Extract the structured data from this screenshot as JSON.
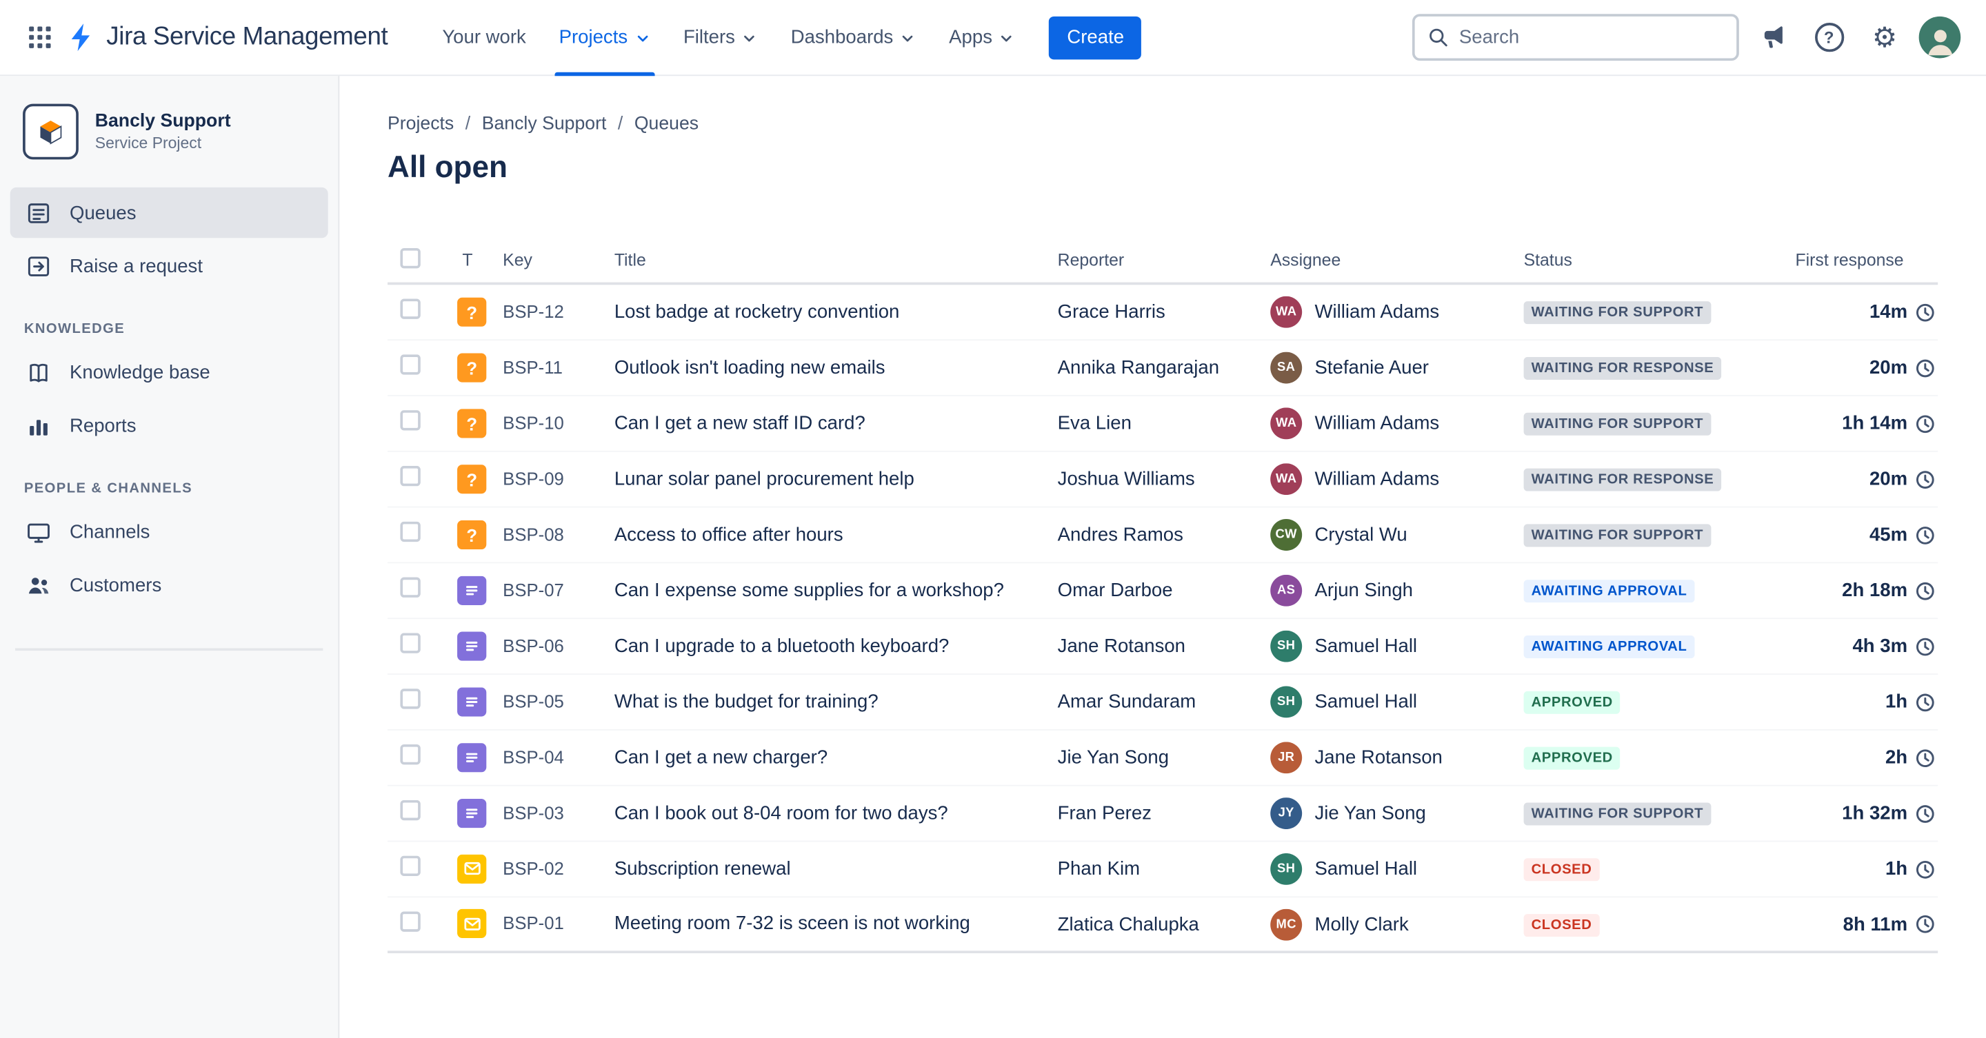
{
  "navbar": {
    "app_name": "Jira Service Management",
    "nav_items": [
      {
        "label": "Your work",
        "chevron": false,
        "active": false
      },
      {
        "label": "Projects",
        "chevron": true,
        "active": true
      },
      {
        "label": "Filters",
        "chevron": true,
        "active": false
      },
      {
        "label": "Dashboards",
        "chevron": true,
        "active": false
      },
      {
        "label": "Apps",
        "chevron": true,
        "active": false
      }
    ],
    "create_button": "Create",
    "search": {
      "placeholder": "Search"
    }
  },
  "sidebar": {
    "project": {
      "name": "Bancly Support",
      "type": "Service Project"
    },
    "groups": [
      {
        "heading": "",
        "items": [
          {
            "label": "Queues",
            "icon": "queues-icon",
            "selected": true
          },
          {
            "label": "Raise a request",
            "icon": "raise-request-icon",
            "selected": false
          }
        ]
      },
      {
        "heading": "KNOWLEDGE",
        "items": [
          {
            "label": "Knowledge base",
            "icon": "knowledge-base-icon",
            "selected": false
          },
          {
            "label": "Reports",
            "icon": "reports-icon",
            "selected": false
          }
        ]
      },
      {
        "heading": "PEOPLE & CHANNELS",
        "items": [
          {
            "label": "Channels",
            "icon": "channels-icon",
            "selected": false
          },
          {
            "label": "Customers",
            "icon": "customers-icon",
            "selected": false
          }
        ]
      }
    ]
  },
  "main": {
    "breadcrumb": [
      "Projects",
      "Bancly Support",
      "Queues"
    ],
    "title": "All open",
    "table": {
      "columns": {
        "type": "T",
        "key": "Key",
        "title": "Title",
        "reporter": "Reporter",
        "assignee": "Assignee",
        "status": "Status",
        "first_response": "First response"
      },
      "rows": [
        {
          "type": "question",
          "key": "BSP-12",
          "title": "Lost badge at rocketry convention",
          "reporter": "Grace Harris",
          "assignee": "William Adams",
          "status": "WAITING FOR SUPPORT",
          "status_kind": "gray",
          "first_response": "14m"
        },
        {
          "type": "question",
          "key": "BSP-11",
          "title": "Outlook isn't loading new emails",
          "reporter": "Annika Rangarajan",
          "assignee": "Stefanie Auer",
          "status": "WAITING FOR RESPONSE",
          "status_kind": "gray",
          "first_response": "20m"
        },
        {
          "type": "question",
          "key": "BSP-10",
          "title": "Can I get a new staff ID card?",
          "reporter": "Eva Lien",
          "assignee": "William Adams",
          "status": "WAITING FOR SUPPORT",
          "status_kind": "gray",
          "first_response": "1h 14m"
        },
        {
          "type": "question",
          "key": "BSP-09",
          "title": "Lunar solar panel procurement help",
          "reporter": "Joshua Williams",
          "assignee": "William Adams",
          "status": "WAITING FOR RESPONSE",
          "status_kind": "gray",
          "first_response": "20m"
        },
        {
          "type": "question",
          "key": "BSP-08",
          "title": "Access to office after hours",
          "reporter": "Andres Ramos",
          "assignee": "Crystal Wu",
          "status": "WAITING FOR SUPPORT",
          "status_kind": "gray",
          "first_response": "45m"
        },
        {
          "type": "doc",
          "key": "BSP-07",
          "title": "Can I expense some supplies for a workshop?",
          "reporter": "Omar Darboe",
          "assignee": "Arjun Singh",
          "status": "AWAITING APPROVAL",
          "status_kind": "blue",
          "first_response": "2h 18m"
        },
        {
          "type": "doc",
          "key": "BSP-06",
          "title": "Can I upgrade to a bluetooth keyboard?",
          "reporter": "Jane Rotanson",
          "assignee": "Samuel Hall",
          "status": "AWAITING APPROVAL",
          "status_kind": "blue",
          "first_response": "4h 3m"
        },
        {
          "type": "doc",
          "key": "BSP-05",
          "title": "What is the budget for training?",
          "reporter": "Amar Sundaram",
          "assignee": "Samuel Hall",
          "status": "APPROVED",
          "status_kind": "green",
          "first_response": "1h"
        },
        {
          "type": "doc",
          "key": "BSP-04",
          "title": "Can I get a new charger?",
          "reporter": "Jie Yan Song",
          "assignee": "Jane Rotanson",
          "status": "APPROVED",
          "status_kind": "green",
          "first_response": "2h"
        },
        {
          "type": "doc",
          "key": "BSP-03",
          "title": "Can I book out 8-04 room for two days?",
          "reporter": "Fran Perez",
          "assignee": "Jie Yan Song",
          "status": "WAITING FOR SUPPORT",
          "status_kind": "gray",
          "first_response": "1h 32m"
        },
        {
          "type": "email",
          "key": "BSP-02",
          "title": "Subscription renewal",
          "reporter": "Phan Kim",
          "assignee": "Samuel Hall",
          "status": "CLOSED",
          "status_kind": "red",
          "first_response": "1h"
        },
        {
          "type": "email",
          "key": "BSP-01",
          "title": "Meeting room 7-32 is sceen is not working",
          "reporter": "Zlatica Chalupka",
          "assignee": "Molly Clark",
          "status": "CLOSED",
          "status_kind": "red",
          "first_response": "8h 11m"
        }
      ]
    }
  },
  "status_styles": {
    "gray": {
      "bg": "#DCDFE4",
      "fg": "#44546F"
    },
    "blue": {
      "bg": "#E9F2FF",
      "fg": "#0055CC"
    },
    "green": {
      "bg": "#DCFFF1",
      "fg": "#216E4E"
    },
    "red": {
      "bg": "#FFECEB",
      "fg": "#CA3521"
    }
  },
  "type_icon_colors": {
    "question": "#FF991F",
    "doc": "#8270DB",
    "email": "#FFC400"
  },
  "brand_color": "#1D7AFC",
  "accent_color": "#0C66E4"
}
